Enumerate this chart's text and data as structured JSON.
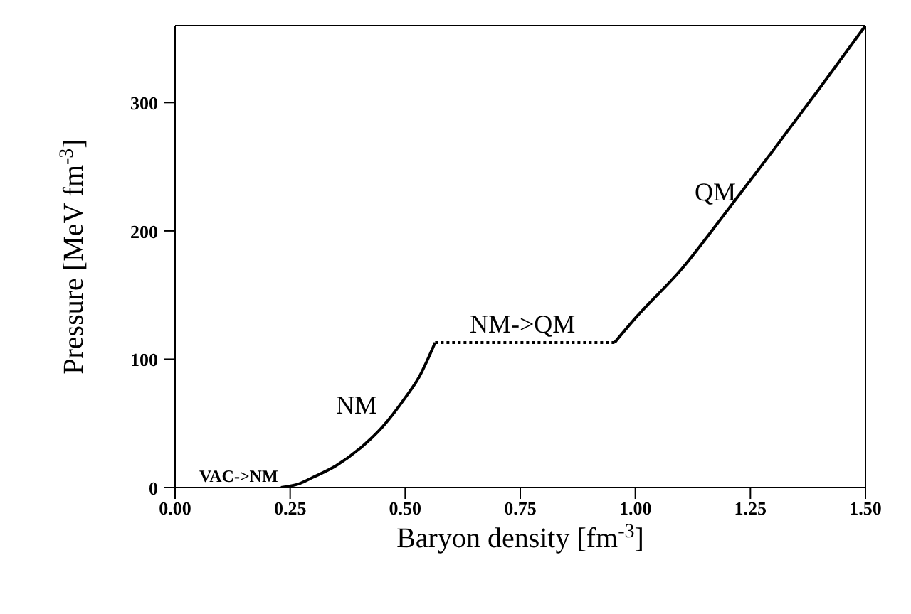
{
  "chart_data": {
    "type": "line",
    "xlabel": "Baryon density [fm$^{-3}$]",
    "ylabel": "Pressure [MeV fm$^{-3}$]",
    "xlim": [
      0,
      1.5
    ],
    "ylim": [
      0,
      360
    ],
    "xticks": [
      {
        "value": 0,
        "label": "0.00"
      },
      0.25,
      {
        "value": 0.5,
        "label": "0.50"
      },
      0.75,
      {
        "value": 1,
        "label": "1.00"
      },
      1.25,
      {
        "value": 1.5,
        "label": "1.50"
      }
    ],
    "yticks": [
      0,
      100,
      200,
      300
    ],
    "marker": "none",
    "series": [
      {
        "color": "#000000",
        "line_style": "solid",
        "x": [
          0.23,
          0.27,
          0.3,
          0.35,
          0.4,
          0.45,
          0.5,
          0.53,
          0.565
        ],
        "values": [
          0,
          3,
          8,
          17,
          30,
          47,
          70,
          86,
          113
        ]
      },
      {
        "color": "#000000",
        "line_style": "dotted",
        "x": [
          0.565,
          0.955
        ],
        "values": [
          113,
          113
        ]
      },
      {
        "color": "#000000",
        "line_style": "solid",
        "x": [
          0.955,
          1.0,
          1.1,
          1.2,
          1.3,
          1.4,
          1.5
        ],
        "values": [
          113,
          132,
          170,
          216,
          263,
          311,
          360
        ]
      }
    ],
    "annotations": [
      "VAC->NM",
      "NM",
      "NM->QM",
      "QM"
    ]
  }
}
